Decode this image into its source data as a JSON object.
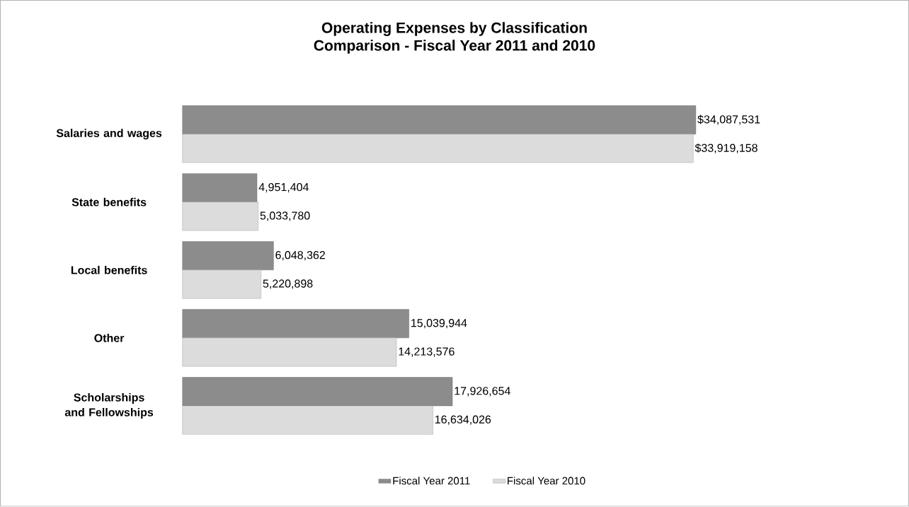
{
  "chart_data": {
    "type": "bar",
    "orientation": "horizontal",
    "title": "Operating Expenses by Classification",
    "subtitle": "Comparison - Fiscal Year 2011 and 2010",
    "categories": [
      "Salaries and wages",
      "State benefits",
      "Local benefits",
      "Other",
      "Scholarships and Fellowships"
    ],
    "series": [
      {
        "name": "Fiscal Year 2011",
        "color": "#8c8c8c",
        "values": [
          34087531,
          4951404,
          6048362,
          15039944,
          17926654
        ],
        "value_labels": [
          "$34,087,531",
          "4,951,404",
          "6,048,362",
          "15,039,944",
          "17,926,654"
        ]
      },
      {
        "name": "Fiscal Year 2010",
        "color": "#dcdcdc",
        "values": [
          33919158,
          5033780,
          5220898,
          14213576,
          16634026
        ],
        "value_labels": [
          "$33,919,158",
          "5,033,780",
          "5,220,898",
          "14,213,576",
          "16,634,026"
        ]
      }
    ],
    "legend": "bottom"
  }
}
